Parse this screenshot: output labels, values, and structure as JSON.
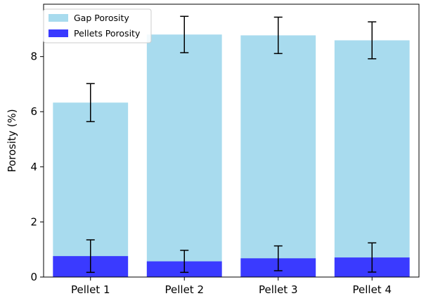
{
  "chart_data": {
    "type": "bar",
    "stacking": "overlay",
    "categories": [
      "Pellet 1",
      "Pellet 2",
      "Pellet 3",
      "Pellet 4"
    ],
    "series": [
      {
        "name": "Gap Porosity",
        "color": "#a8dbee",
        "values": [
          6.33,
          8.8,
          8.77,
          8.59
        ],
        "errors": [
          0.69,
          0.66,
          0.66,
          0.67
        ]
      },
      {
        "name": "Pellets Porosity",
        "color": "#3a3aff",
        "values": [
          0.76,
          0.57,
          0.68,
          0.71
        ],
        "errors": [
          0.59,
          0.4,
          0.45,
          0.53
        ]
      }
    ],
    "title": "",
    "xlabel": "",
    "ylabel": "Porosity (%)",
    "ylim": [
      0,
      9.9
    ],
    "yticks": [
      0,
      2,
      4,
      6,
      8
    ],
    "grid": false,
    "legend_position": "top-left"
  }
}
